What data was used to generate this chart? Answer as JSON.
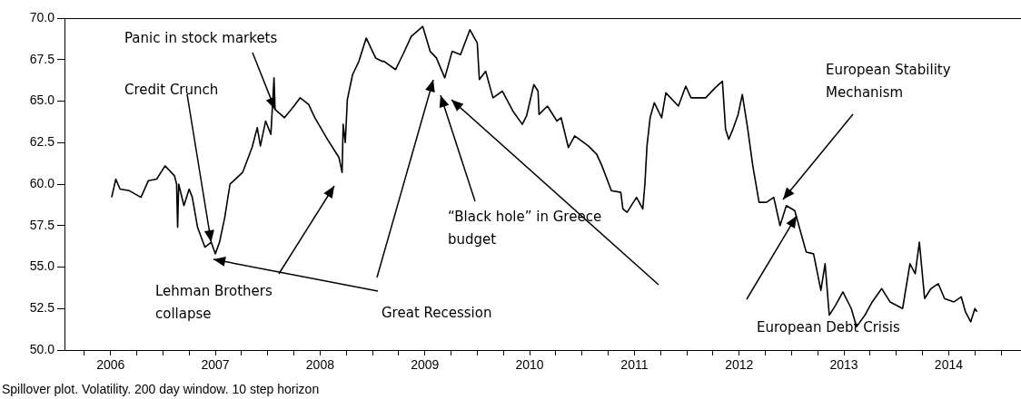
{
  "chart_data": {
    "type": "line",
    "x": [
      2006.01,
      2006.05,
      2006.09,
      2006.18,
      2006.29,
      2006.36,
      2006.44,
      2006.52,
      2006.61,
      2006.63,
      2006.64,
      2006.65,
      2006.7,
      2006.75,
      2006.78,
      2006.83,
      2006.9,
      2006.96,
      2007.0,
      2007.04,
      2007.09,
      2007.14,
      2007.26,
      2007.35,
      2007.4,
      2007.43,
      2007.48,
      2007.53,
      2007.56,
      2007.57,
      2007.66,
      2007.75,
      2007.81,
      2007.89,
      2007.95,
      2008.07,
      2008.18,
      2008.21,
      2008.22,
      2008.24,
      2008.26,
      2008.31,
      2008.37,
      2008.44,
      2008.5,
      2008.53,
      2008.59,
      2008.61,
      2008.72,
      2008.79,
      2008.87,
      2008.98,
      2009.05,
      2009.11,
      2009.19,
      2009.26,
      2009.34,
      2009.43,
      2009.5,
      2009.52,
      2009.58,
      2009.65,
      2009.74,
      2009.84,
      2009.93,
      2009.97,
      2010.04,
      2010.08,
      2010.09,
      2010.17,
      2010.26,
      2010.3,
      2010.37,
      2010.43,
      2010.56,
      2010.64,
      2010.69,
      2010.78,
      2010.87,
      2010.89,
      2010.93,
      2011.02,
      2011.08,
      2011.1,
      2011.12,
      2011.15,
      2011.19,
      2011.26,
      2011.3,
      2011.42,
      2011.49,
      2011.54,
      2011.68,
      2011.77,
      2011.84,
      2011.87,
      2011.9,
      2011.94,
      2011.99,
      2012.03,
      2012.08,
      2012.13,
      2012.19,
      2012.26,
      2012.33,
      2012.39,
      2012.45,
      2012.53,
      2012.64,
      2012.71,
      2012.78,
      2012.82,
      2012.86,
      2012.92,
      2012.99,
      2013.07,
      2013.12,
      2013.2,
      2013.27,
      2013.36,
      2013.44,
      2013.56,
      2013.63,
      2013.68,
      2013.72,
      2013.77,
      2013.83,
      2013.9,
      2013.96,
      2014.05,
      2014.12,
      2014.16,
      2014.21,
      2014.25,
      2014.27
    ],
    "series": [
      {
        "color": "#000000",
        "values": [
          59.2,
          60.3,
          59.7,
          59.6,
          59.2,
          60.2,
          60.3,
          61.1,
          60.5,
          60.0,
          57.4,
          60.0,
          58.7,
          59.7,
          59.2,
          57.4,
          56.2,
          56.5,
          55.8,
          56.5,
          58.0,
          60.0,
          60.7,
          62.2,
          63.4,
          62.3,
          63.8,
          63.0,
          66.4,
          64.5,
          64.0,
          64.7,
          65.2,
          64.8,
          64.0,
          62.7,
          61.6,
          60.7,
          63.6,
          62.5,
          65.1,
          66.6,
          67.4,
          68.8,
          68.0,
          67.6,
          67.4,
          67.4,
          66.9,
          67.8,
          68.9,
          69.5,
          68.0,
          67.6,
          66.4,
          68.0,
          67.8,
          69.3,
          68.5,
          66.3,
          66.8,
          65.2,
          65.6,
          64.4,
          63.6,
          64.1,
          66.0,
          65.6,
          64.2,
          64.7,
          63.8,
          64.0,
          62.2,
          62.9,
          62.3,
          61.8,
          61.1,
          59.6,
          59.5,
          58.5,
          58.3,
          59.2,
          58.5,
          60.0,
          62.3,
          64.0,
          64.9,
          64.0,
          65.5,
          64.7,
          65.9,
          65.2,
          65.2,
          65.8,
          66.2,
          63.3,
          62.7,
          63.3,
          64.2,
          65.4,
          63.4,
          61.1,
          58.9,
          58.9,
          59.2,
          57.5,
          58.7,
          58.4,
          55.9,
          55.8,
          53.6,
          55.2,
          52.1,
          52.7,
          53.5,
          52.5,
          51.4,
          52.1,
          52.9,
          53.7,
          52.9,
          52.5,
          55.2,
          54.6,
          56.5,
          53.1,
          53.7,
          54.0,
          53.1,
          52.9,
          53.2,
          52.3,
          51.7,
          52.5,
          52.3
        ]
      }
    ],
    "xlim": [
      2005.56,
      2014.69
    ],
    "xticks": [
      {
        "value": 2005.75,
        "label": null
      },
      {
        "value": 2006,
        "label": "2006"
      },
      {
        "value": 2006.25,
        "label": null
      },
      {
        "value": 2006.5,
        "label": null
      },
      {
        "value": 2006.75,
        "label": null
      },
      {
        "value": 2007,
        "label": "2007"
      },
      {
        "value": 2007.25,
        "label": null
      },
      {
        "value": 2007.5,
        "label": null
      },
      {
        "value": 2007.75,
        "label": null
      },
      {
        "value": 2008,
        "label": "2008"
      },
      {
        "value": 2008.25,
        "label": null
      },
      {
        "value": 2008.5,
        "label": null
      },
      {
        "value": 2008.75,
        "label": null
      },
      {
        "value": 2009,
        "label": "2009"
      },
      {
        "value": 2009.25,
        "label": null
      },
      {
        "value": 2009.5,
        "label": null
      },
      {
        "value": 2009.75,
        "label": null
      },
      {
        "value": 2010,
        "label": "2010"
      },
      {
        "value": 2010.25,
        "label": null
      },
      {
        "value": 2010.5,
        "label": null
      },
      {
        "value": 2010.75,
        "label": null
      },
      {
        "value": 2011,
        "label": "2011"
      },
      {
        "value": 2011.25,
        "label": null
      },
      {
        "value": 2011.5,
        "label": null
      },
      {
        "value": 2011.75,
        "label": null
      },
      {
        "value": 2012,
        "label": "2012"
      },
      {
        "value": 2012.25,
        "label": null
      },
      {
        "value": 2012.5,
        "label": null
      },
      {
        "value": 2012.75,
        "label": null
      },
      {
        "value": 2013,
        "label": "2013"
      },
      {
        "value": 2013.25,
        "label": null
      },
      {
        "value": 2013.5,
        "label": null
      },
      {
        "value": 2013.75,
        "label": null
      },
      {
        "value": 2014,
        "label": "2014"
      },
      {
        "value": 2014.25,
        "label": null
      },
      {
        "value": 2014.5,
        "label": null
      }
    ],
    "ylim": [
      50,
      70
    ],
    "yticks": [
      {
        "value": 50,
        "label": "50.0"
      },
      {
        "value": 52.5,
        "label": "52.5"
      },
      {
        "value": 55,
        "label": "55.0"
      },
      {
        "value": 57.5,
        "label": "57.5"
      },
      {
        "value": 60,
        "label": "60.0"
      },
      {
        "value": 62.5,
        "label": "62.5"
      },
      {
        "value": 65,
        "label": "65.0"
      },
      {
        "value": 67.5,
        "label": "67.5"
      },
      {
        "value": 70,
        "label": "70.0"
      }
    ],
    "grid": false,
    "legend": false,
    "marker": "none",
    "line_style": "solid",
    "annotations": [
      {
        "text": "Credit Crunch",
        "x": 2006.96,
        "y": 56.5
      },
      {
        "text": "Panic in stock markets",
        "x": 2007.57,
        "y": 64.5
      },
      "Lehman Brothers collapse",
      "Great Recession",
      "“Black hole” in Greece budget",
      "European Debt Crisis",
      "European Stability Mechanism",
      "Spillover plot. Volatility. 200 day window. 10 step horizon"
    ]
  }
}
